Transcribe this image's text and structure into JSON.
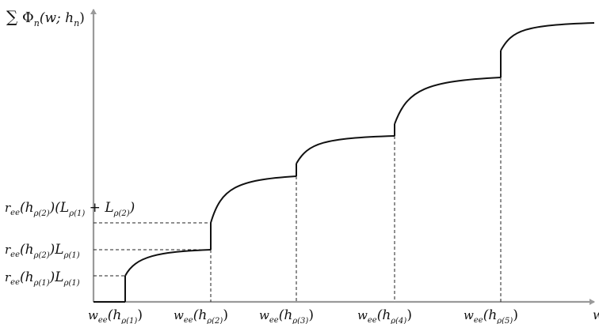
{
  "chart_data": {
    "type": "line",
    "title": "",
    "ylabel": "∑ Φ_n(w; h_n)",
    "xlabel": "w",
    "xlim": [
      0,
      6
    ],
    "ylim": [
      0,
      10
    ],
    "grid": false,
    "legend": "none",
    "x_ticks": [
      {
        "x": 1,
        "base": "w",
        "sub": "ee",
        "arg": "(h",
        "argsub": "ρ(1)",
        "close": ")"
      },
      {
        "x": 2,
        "base": "w",
        "sub": "ee",
        "arg": "(h",
        "argsub": "ρ(2)",
        "close": ")"
      },
      {
        "x": 3,
        "base": "w",
        "sub": "ee",
        "arg": "(h",
        "argsub": "ρ(3)",
        "close": ")"
      },
      {
        "x": 4,
        "base": "w",
        "sub": "ee",
        "arg": "(h",
        "argsub": "ρ(4)",
        "close": ")"
      },
      {
        "x": 5,
        "base": "w",
        "sub": "ee",
        "arg": "(h",
        "argsub": "ρ(5)",
        "close": ")"
      }
    ],
    "y_ticks": [
      {
        "y": 0.9,
        "text": "r_ee(h_ρ(1)) L_ρ(1)"
      },
      {
        "y": 1.9,
        "text": "r_ee(h_ρ(2)) L_ρ(1)"
      },
      {
        "y": 2.95,
        "text": "r_ee(h_ρ(2)) (L_ρ(1) + L_ρ(2))"
      }
    ],
    "series": [
      {
        "segments": [
          {
            "x_start": 1,
            "x_end": 2,
            "y_start": 0.9,
            "y_end": 1.9
          },
          {
            "x_start": 2,
            "x_end": 3,
            "y_start": 2.95,
            "y_end": 5.1
          },
          {
            "x_start": 3,
            "x_end": 4,
            "y_start": 5.65,
            "y_end": 6.9
          },
          {
            "x_start": 4,
            "x_end": 5,
            "y_start": 7.6,
            "y_end": 8.9
          },
          {
            "x_start": 5,
            "x_end": 6,
            "y_start": 9.8,
            "y_end": 10.8
          }
        ]
      }
    ]
  }
}
